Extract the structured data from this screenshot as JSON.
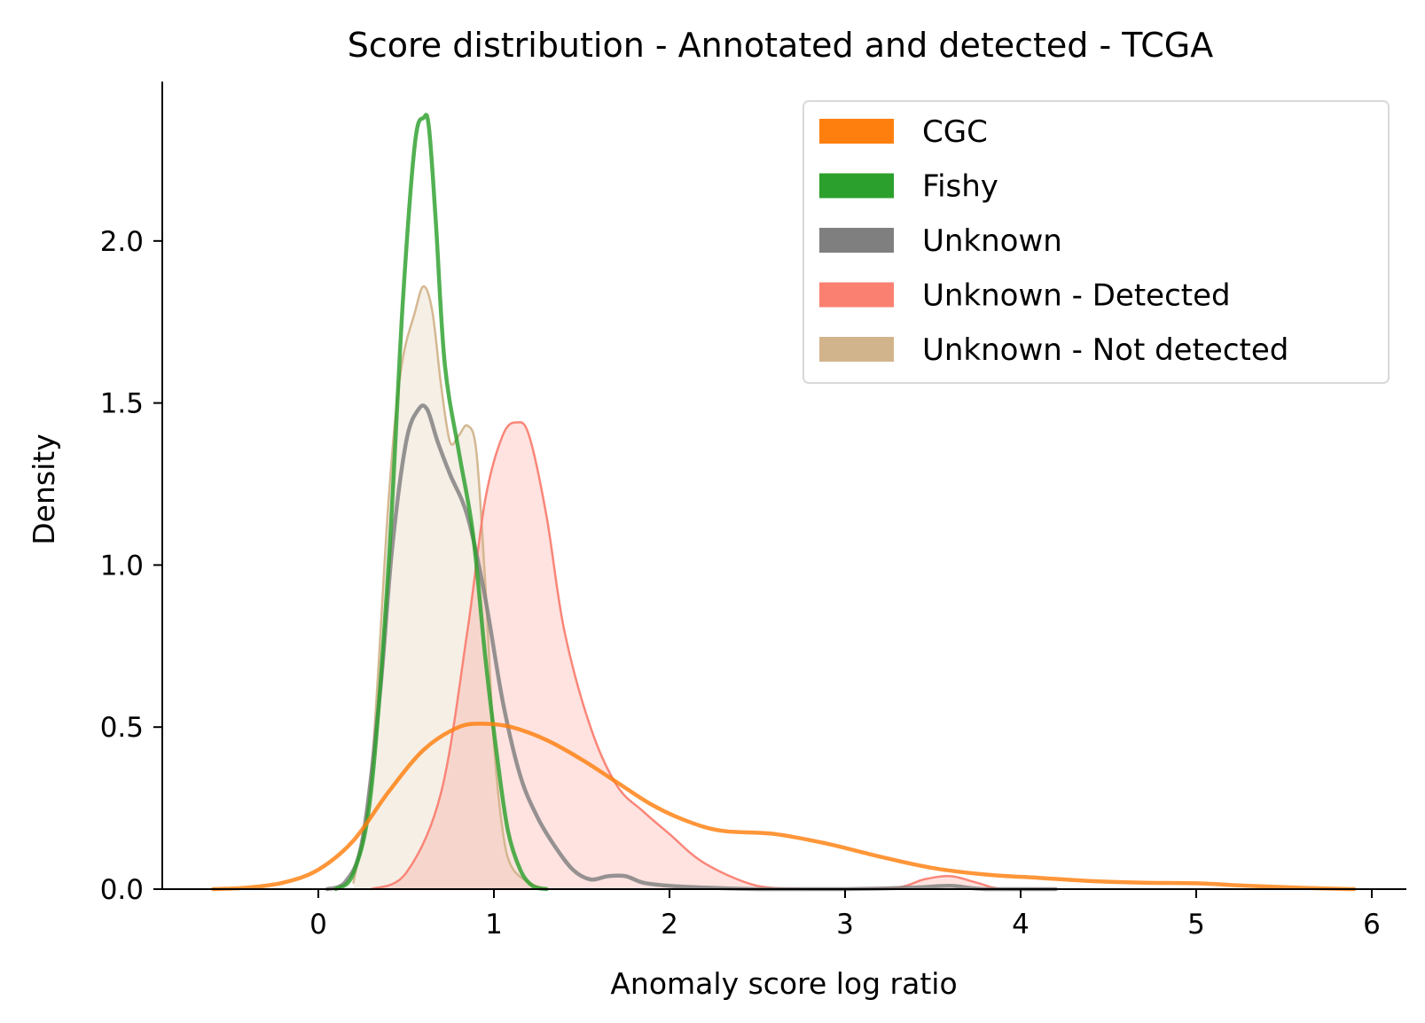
{
  "chart_data": {
    "type": "line",
    "subtype": "kde-density",
    "title": "Score distribution - Annotated and detected - TCGA",
    "xlabel": "Anomaly score log ratio",
    "ylabel": "Density",
    "xlim": [
      -0.9,
      6.2
    ],
    "ylim": [
      0,
      2.5
    ],
    "xticks": [
      0,
      1,
      2,
      3,
      4,
      5,
      6
    ],
    "xtick_labels": [
      "0",
      "1",
      "2",
      "3",
      "4",
      "5",
      "6"
    ],
    "yticks": [
      0.0,
      0.5,
      1.0,
      1.5,
      2.0
    ],
    "ytick_labels": [
      "0.0",
      "0.5",
      "1.0",
      "1.5",
      "2.0"
    ],
    "grid": false,
    "legend_position": "top-right",
    "legend": [
      {
        "label": "CGC",
        "color": "#ff7f0e"
      },
      {
        "label": "Fishy",
        "color": "#2ca02c"
      },
      {
        "label": "Unknown",
        "color": "#7f7f7f"
      },
      {
        "label": "Unknown - Detected",
        "color": "#fa8072"
      },
      {
        "label": "Unknown - Not detected",
        "color": "#d2b48c"
      }
    ],
    "series": [
      {
        "name": "Unknown - Not detected",
        "color": "#d2b48c",
        "filled": true,
        "stroke_width": 2.5,
        "x": [
          0.2,
          0.3,
          0.4,
          0.47,
          0.55,
          0.6,
          0.65,
          0.7,
          0.75,
          0.8,
          0.85,
          0.9,
          0.95,
          1.0,
          1.05,
          1.1,
          1.2,
          1.3
        ],
        "y": [
          0.02,
          0.35,
          1.2,
          1.6,
          1.78,
          1.86,
          1.78,
          1.55,
          1.38,
          1.4,
          1.43,
          1.35,
          0.95,
          0.45,
          0.18,
          0.07,
          0.02,
          0.0
        ]
      },
      {
        "name": "Unknown - Detected",
        "color": "#fa8072",
        "filled": true,
        "stroke_width": 2.5,
        "x": [
          0.3,
          0.5,
          0.7,
          0.85,
          0.95,
          1.05,
          1.13,
          1.2,
          1.3,
          1.4,
          1.55,
          1.7,
          1.85,
          2.0,
          2.2,
          2.5,
          2.8,
          3.0,
          3.3,
          3.45,
          3.6,
          3.75,
          3.9,
          4.2
        ],
        "y": [
          0.0,
          0.05,
          0.3,
          0.8,
          1.2,
          1.4,
          1.44,
          1.4,
          1.15,
          0.8,
          0.5,
          0.32,
          0.24,
          0.17,
          0.08,
          0.01,
          0.0,
          0.0,
          0.005,
          0.03,
          0.04,
          0.02,
          0.0,
          0.0
        ]
      },
      {
        "name": "Unknown",
        "color": "#7f7f7f",
        "filled": false,
        "stroke_width": 4.5,
        "x": [
          0.05,
          0.15,
          0.25,
          0.35,
          0.42,
          0.5,
          0.57,
          0.62,
          0.68,
          0.75,
          0.85,
          0.95,
          1.05,
          1.15,
          1.25,
          1.35,
          1.45,
          1.55,
          1.65,
          1.75,
          1.85,
          2.0,
          2.2,
          2.5,
          3.0,
          3.4,
          3.6,
          3.8,
          4.2
        ],
        "y": [
          0.0,
          0.02,
          0.15,
          0.6,
          1.05,
          1.38,
          1.48,
          1.48,
          1.38,
          1.28,
          1.15,
          0.9,
          0.58,
          0.35,
          0.22,
          0.13,
          0.06,
          0.03,
          0.04,
          0.04,
          0.02,
          0.01,
          0.005,
          0.0,
          0.0,
          0.005,
          0.01,
          0.0,
          0.0
        ]
      },
      {
        "name": "Fishy",
        "color": "#2ca02c",
        "filled": false,
        "stroke_width": 4.5,
        "x": [
          0.1,
          0.2,
          0.3,
          0.4,
          0.48,
          0.55,
          0.6,
          0.63,
          0.67,
          0.72,
          0.8,
          0.88,
          0.95,
          1.02,
          1.08,
          1.15,
          1.22,
          1.3
        ],
        "y": [
          0.0,
          0.05,
          0.3,
          1.0,
          1.8,
          2.3,
          2.38,
          2.35,
          2.05,
          1.62,
          1.35,
          1.1,
          0.72,
          0.4,
          0.18,
          0.06,
          0.01,
          0.0
        ]
      },
      {
        "name": "CGC",
        "color": "#ff7f0e",
        "filled": false,
        "stroke_width": 4.5,
        "x": [
          -0.6,
          -0.4,
          -0.2,
          0.0,
          0.2,
          0.4,
          0.6,
          0.8,
          0.95,
          1.1,
          1.3,
          1.5,
          1.7,
          1.9,
          2.1,
          2.3,
          2.6,
          2.9,
          3.2,
          3.5,
          3.8,
          4.1,
          4.4,
          4.7,
          5.0,
          5.3,
          5.6,
          5.9
        ],
        "y": [
          0.0,
          0.005,
          0.02,
          0.06,
          0.15,
          0.3,
          0.43,
          0.5,
          0.51,
          0.5,
          0.46,
          0.4,
          0.33,
          0.26,
          0.21,
          0.18,
          0.17,
          0.14,
          0.1,
          0.065,
          0.045,
          0.035,
          0.025,
          0.02,
          0.018,
          0.01,
          0.004,
          0.0
        ]
      }
    ]
  }
}
